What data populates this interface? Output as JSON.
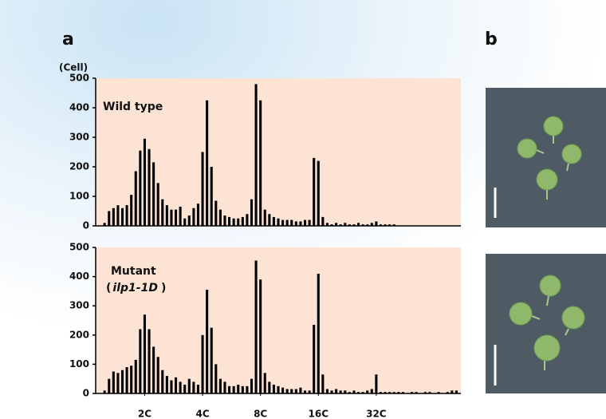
{
  "panels": {
    "a": "a",
    "b": "b"
  },
  "chart_data": [
    {
      "type": "bar",
      "y_label": "(Cell)",
      "annotation": [
        "Wild type"
      ],
      "color": "#000000",
      "background": "#fde3d3",
      "x": [
        1,
        2,
        3,
        4,
        5,
        6,
        7,
        8,
        9,
        10,
        11,
        12,
        13,
        14,
        15,
        16,
        17,
        18,
        19,
        20,
        21,
        22,
        23,
        24,
        25,
        26,
        27,
        28,
        29,
        30,
        31,
        32,
        33,
        34,
        35,
        36,
        37,
        38,
        39,
        40,
        41,
        42,
        43,
        44,
        45,
        46,
        47,
        48,
        49,
        50,
        51,
        52,
        53,
        54,
        55,
        56,
        57,
        58,
        59,
        60,
        61,
        62,
        63,
        64,
        65,
        66
      ],
      "values": [
        10,
        50,
        60,
        70,
        60,
        70,
        105,
        185,
        255,
        295,
        260,
        215,
        145,
        90,
        70,
        55,
        55,
        65,
        25,
        35,
        60,
        75,
        250,
        425,
        200,
        85,
        55,
        35,
        30,
        25,
        25,
        30,
        40,
        90,
        480,
        425,
        55,
        40,
        30,
        25,
        20,
        20,
        20,
        15,
        15,
        20,
        20,
        230,
        220,
        30,
        10,
        5,
        10,
        5,
        10,
        5,
        5,
        10,
        5,
        5,
        10,
        15,
        5,
        5,
        5,
        5
      ],
      "xlim": [
        -1,
        81
      ],
      "ylim": [
        0,
        500
      ],
      "yticks": [
        0,
        100,
        200,
        300,
        400,
        500
      ]
    },
    {
      "type": "bar",
      "annotation": [
        "Mutant",
        "(",
        "ilp1-1D",
        ")"
      ],
      "color": "#000000",
      "background": "#fde3d3",
      "x": [
        1,
        2,
        3,
        4,
        5,
        6,
        7,
        8,
        9,
        10,
        11,
        12,
        13,
        14,
        15,
        16,
        17,
        18,
        19,
        20,
        21,
        22,
        23,
        24,
        25,
        26,
        27,
        28,
        29,
        30,
        31,
        32,
        33,
        34,
        35,
        36,
        37,
        38,
        39,
        40,
        41,
        42,
        43,
        44,
        45,
        46,
        47,
        48,
        49,
        50,
        51,
        52,
        53,
        54,
        55,
        56,
        57,
        58,
        59,
        60,
        61,
        62,
        63,
        64,
        65,
        66,
        67,
        68,
        69,
        70,
        71,
        72,
        73,
        74,
        75,
        76,
        77,
        78,
        79,
        80
      ],
      "values": [
        10,
        50,
        75,
        70,
        80,
        90,
        95,
        115,
        220,
        270,
        220,
        160,
        125,
        80,
        60,
        45,
        55,
        40,
        30,
        50,
        40,
        30,
        200,
        355,
        225,
        100,
        50,
        40,
        25,
        25,
        30,
        25,
        25,
        50,
        455,
        390,
        70,
        40,
        30,
        25,
        20,
        15,
        15,
        15,
        20,
        10,
        10,
        235,
        410,
        65,
        15,
        10,
        15,
        10,
        10,
        5,
        10,
        5,
        5,
        10,
        15,
        65,
        5,
        5,
        5,
        5,
        5,
        5,
        0,
        5,
        5,
        0,
        5,
        5,
        0,
        5,
        0,
        5,
        10,
        10
      ],
      "xlim": [
        -1,
        81
      ],
      "ylim": [
        0,
        500
      ],
      "yticks": [
        0,
        100,
        200,
        300,
        400,
        500
      ],
      "xticks": [
        {
          "value": 10,
          "label": "2C"
        },
        {
          "value": 23,
          "label": "4C"
        },
        {
          "value": 36,
          "label": "8C"
        },
        {
          "value": 49,
          "label": "16C"
        },
        {
          "value": 62,
          "label": "32C"
        }
      ]
    }
  ]
}
